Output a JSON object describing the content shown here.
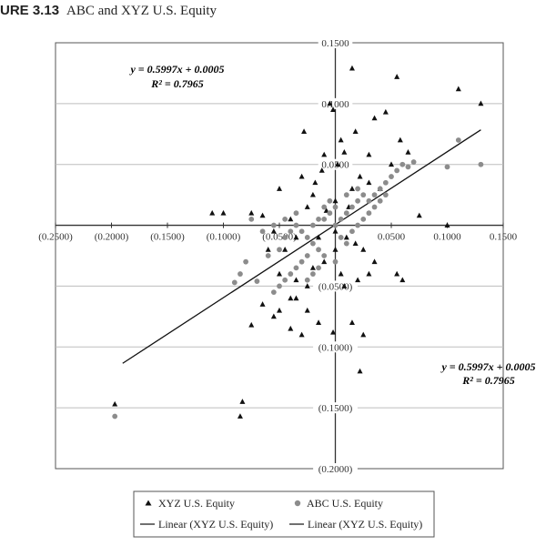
{
  "figure_label": "URE 3.13",
  "title": "ABC and XYZ U.S. Equity",
  "chart_data": {
    "type": "scatter",
    "title": "ABC and XYZ U.S. Equity",
    "xlim": [
      -0.25,
      0.15
    ],
    "ylim": [
      -0.2,
      0.15
    ],
    "x_ticks": [
      -0.25,
      -0.2,
      -0.15,
      -0.1,
      -0.05,
      0.05,
      0.1,
      0.15
    ],
    "x_tick_labels": [
      "(0.2500)",
      "(0.2000)",
      "(0.1500)",
      "(0.1000)",
      "(0.0500)",
      "0.0500",
      "0.1000",
      "0.1500"
    ],
    "y_ticks": [
      0.15,
      0.1,
      0.05,
      -0.05,
      -0.1,
      -0.15,
      -0.2
    ],
    "y_tick_labels": [
      "0.1500",
      "0.1000",
      "0.0500",
      "(0.0500)",
      "(0.1000)",
      "(0.1500)",
      "(0.2000)"
    ],
    "grid": "horizontal",
    "legend_position": "bottom",
    "annotations": [
      {
        "equation": "y = 0.5997x + 0.0005",
        "r2": "R² = 0.7965",
        "position": "top-left"
      },
      {
        "equation": "y = 0.5997x + 0.0005",
        "r2": "R² = 0.7965",
        "position": "right"
      }
    ],
    "trendline": {
      "name": "Linear (XYZ U.S. Equity)",
      "slope": 0.5997,
      "intercept": 0.0005,
      "x_range": [
        -0.19,
        0.13
      ]
    },
    "legend": [
      "XYZ U.S. Equity",
      "ABC U.S. Equity",
      "Linear (XYZ U.S. Equity)",
      "Linear (XYZ U.S. Equity)"
    ],
    "series": [
      {
        "name": "XYZ U.S. Equity",
        "marker": "triangle",
        "color": "#111111",
        "points": [
          [
            -0.197,
            -0.147
          ],
          [
            -0.083,
            -0.145
          ],
          [
            -0.085,
            -0.157
          ],
          [
            0.015,
            0.129
          ],
          [
            0.055,
            0.122
          ],
          [
            0.11,
            0.112
          ],
          [
            0.13,
            0.1
          ],
          [
            -0.005,
            0.1
          ],
          [
            -0.002,
            0.095
          ],
          [
            -0.028,
            0.077
          ],
          [
            0.005,
            0.07
          ],
          [
            0.018,
            0.077
          ],
          [
            0.035,
            0.088
          ],
          [
            0.045,
            0.093
          ],
          [
            0.058,
            0.07
          ],
          [
            0.065,
            0.06
          ],
          [
            0.05,
            0.05
          ],
          [
            0.03,
            0.058
          ],
          [
            0.008,
            0.06
          ],
          [
            -0.01,
            0.058
          ],
          [
            -0.012,
            0.045
          ],
          [
            0.002,
            0.05
          ],
          [
            -0.05,
            0.03
          ],
          [
            -0.075,
            0.01
          ],
          [
            -0.065,
            0.008
          ],
          [
            -0.1,
            0.01
          ],
          [
            -0.11,
            0.01
          ],
          [
            -0.03,
            0.04
          ],
          [
            -0.018,
            0.035
          ],
          [
            0.022,
            0.04
          ],
          [
            0.03,
            0.035
          ],
          [
            0.04,
            0.03
          ],
          [
            0.015,
            0.03
          ],
          [
            -0.02,
            0.025
          ],
          [
            -0.025,
            0.015
          ],
          [
            0.075,
            0.008
          ],
          [
            0.1,
            0.0
          ],
          [
            -0.04,
            0.005
          ],
          [
            -0.055,
            -0.005
          ],
          [
            -0.045,
            -0.02
          ],
          [
            -0.035,
            -0.01
          ],
          [
            -0.015,
            -0.01
          ],
          [
            0.0,
            -0.005
          ],
          [
            0.01,
            -0.01
          ],
          [
            0.018,
            -0.015
          ],
          [
            0.025,
            -0.02
          ],
          [
            0.035,
            -0.03
          ],
          [
            -0.06,
            -0.02
          ],
          [
            -0.05,
            -0.04
          ],
          [
            -0.035,
            -0.045
          ],
          [
            -0.025,
            -0.05
          ],
          [
            -0.02,
            -0.035
          ],
          [
            -0.01,
            -0.03
          ],
          [
            0.0,
            -0.02
          ],
          [
            0.005,
            -0.04
          ],
          [
            0.02,
            -0.045
          ],
          [
            0.03,
            -0.04
          ],
          [
            0.055,
            -0.04
          ],
          [
            0.06,
            -0.045
          ],
          [
            -0.065,
            -0.065
          ],
          [
            -0.055,
            -0.075
          ],
          [
            -0.05,
            -0.07
          ],
          [
            -0.04,
            -0.06
          ],
          [
            -0.035,
            -0.06
          ],
          [
            -0.025,
            -0.07
          ],
          [
            -0.015,
            -0.08
          ],
          [
            -0.002,
            -0.088
          ],
          [
            0.015,
            -0.08
          ],
          [
            0.025,
            -0.09
          ],
          [
            0.022,
            -0.12
          ],
          [
            -0.075,
            -0.082
          ],
          [
            -0.04,
            -0.085
          ],
          [
            -0.03,
            -0.09
          ],
          [
            0.008,
            -0.05
          ],
          [
            0.0,
            0.02
          ],
          [
            0.012,
            0.015
          ],
          [
            -0.008,
            0.012
          ]
        ]
      },
      {
        "name": "ABC U.S. Equity",
        "marker": "circle",
        "color": "#8c8c8c",
        "points": [
          [
            -0.197,
            -0.157
          ],
          [
            -0.09,
            -0.047
          ],
          [
            -0.07,
            -0.046
          ],
          [
            -0.085,
            -0.04
          ],
          [
            -0.08,
            -0.03
          ],
          [
            -0.06,
            -0.025
          ],
          [
            -0.05,
            -0.02
          ],
          [
            -0.045,
            -0.01
          ],
          [
            -0.04,
            -0.005
          ],
          [
            -0.035,
            0.0
          ],
          [
            -0.03,
            -0.005
          ],
          [
            -0.025,
            -0.01
          ],
          [
            -0.02,
            0.0
          ],
          [
            -0.015,
            0.005
          ],
          [
            -0.01,
            0.005
          ],
          [
            -0.005,
            0.01
          ],
          [
            0.0,
            0.0
          ],
          [
            0.005,
            0.005
          ],
          [
            0.01,
            0.01
          ],
          [
            0.015,
            0.015
          ],
          [
            0.02,
            0.02
          ],
          [
            0.025,
            0.025
          ],
          [
            0.03,
            0.02
          ],
          [
            0.035,
            0.025
          ],
          [
            0.04,
            0.03
          ],
          [
            0.045,
            0.035
          ],
          [
            0.05,
            0.04
          ],
          [
            0.055,
            0.045
          ],
          [
            0.06,
            0.05
          ],
          [
            0.065,
            0.048
          ],
          [
            0.07,
            0.052
          ],
          [
            0.1,
            0.048
          ],
          [
            0.11,
            0.07
          ],
          [
            0.13,
            0.05
          ],
          [
            0.02,
            0.03
          ],
          [
            0.01,
            0.025
          ],
          [
            0.0,
            0.015
          ],
          [
            -0.005,
            0.02
          ],
          [
            -0.01,
            0.015
          ],
          [
            -0.015,
            -0.02
          ],
          [
            -0.02,
            -0.015
          ],
          [
            -0.025,
            -0.025
          ],
          [
            -0.03,
            -0.03
          ],
          [
            -0.035,
            -0.035
          ],
          [
            -0.04,
            -0.04
          ],
          [
            -0.045,
            -0.045
          ],
          [
            -0.05,
            -0.05
          ],
          [
            -0.055,
            -0.055
          ],
          [
            -0.025,
            -0.045
          ],
          [
            -0.02,
            -0.04
          ],
          [
            -0.015,
            -0.035
          ],
          [
            0.005,
            -0.01
          ],
          [
            0.01,
            -0.015
          ],
          [
            0.015,
            -0.005
          ],
          [
            0.02,
            0.0
          ],
          [
            0.025,
            0.005
          ],
          [
            0.03,
            0.01
          ],
          [
            0.035,
            0.015
          ],
          [
            0.04,
            0.02
          ],
          [
            0.045,
            0.025
          ],
          [
            -0.075,
            0.005
          ],
          [
            -0.065,
            -0.005
          ],
          [
            -0.055,
            0.0
          ],
          [
            -0.045,
            0.005
          ],
          [
            -0.035,
            0.01
          ],
          [
            -0.01,
            -0.025
          ],
          [
            0.0,
            -0.03
          ]
        ]
      }
    ]
  }
}
